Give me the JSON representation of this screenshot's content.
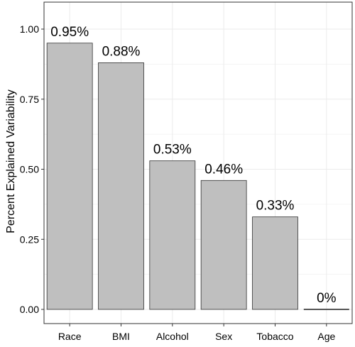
{
  "chart_data": {
    "type": "bar",
    "title": "",
    "xlabel": "",
    "ylabel": "Percent Explained Variability",
    "categories": [
      "Race",
      "BMI",
      "Alcohol",
      "Sex",
      "Tobacco",
      "Age"
    ],
    "values": [
      0.95,
      0.88,
      0.53,
      0.46,
      0.33,
      0.0
    ],
    "data_labels": [
      "0.95%",
      "0.88%",
      "0.53%",
      "0.46%",
      "0.33%",
      "0%"
    ],
    "ylim": [
      0,
      1.0
    ],
    "yticks": [
      0.0,
      0.25,
      0.5,
      0.75,
      1.0
    ],
    "ytick_labels": [
      "0.00",
      "0.25",
      "0.50",
      "0.75",
      "1.00"
    ],
    "grid": true,
    "legend": "none",
    "colors": {
      "bar_fill": "#bfbfbf",
      "bar_stroke": "#333333",
      "grid": "#ebebeb",
      "panel_border": "#333333",
      "text": "#000000"
    }
  }
}
